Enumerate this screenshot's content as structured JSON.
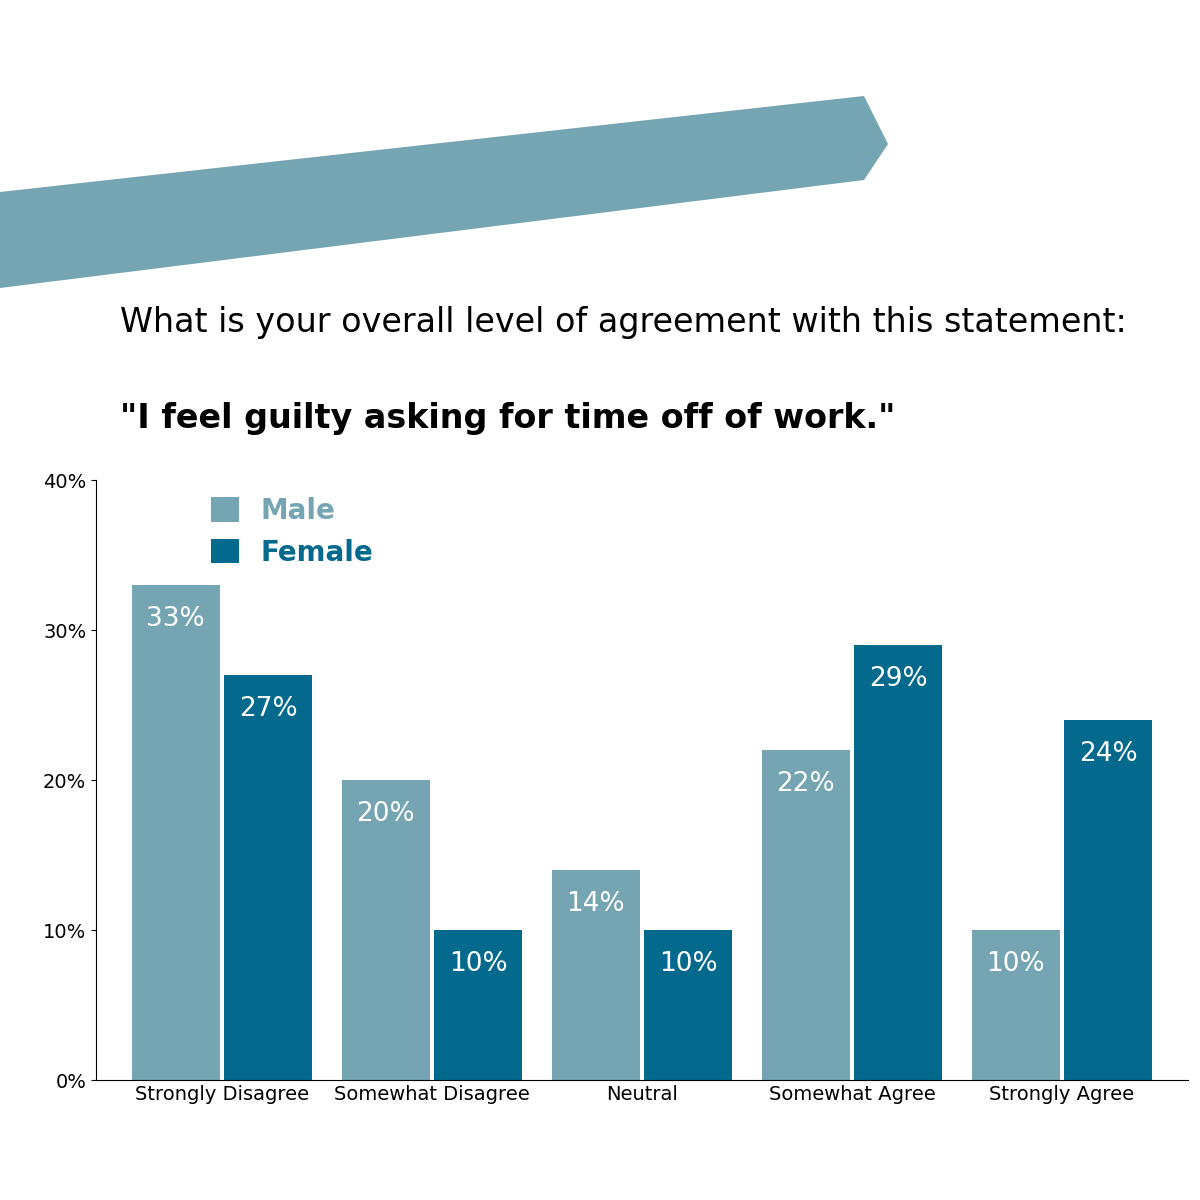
{
  "chart_data": {
    "type": "bar",
    "title": "What is your overall level of agreement with this statement:",
    "subtitle": "\"I feel guilty asking for time off of work.\"",
    "categories": [
      "Strongly Disagree",
      "Somewhat Disagree",
      "Neutral",
      "Somewhat Agree",
      "Strongly Agree"
    ],
    "series": [
      {
        "name": "Male",
        "color": "#75a5b3",
        "values": [
          33,
          20,
          14,
          22,
          10
        ],
        "value_labels": [
          "33%",
          "20%",
          "14%",
          "22%",
          "10%"
        ]
      },
      {
        "name": "Female",
        "color": "#036a8e",
        "values": [
          27,
          10,
          10,
          29,
          24
        ],
        "value_labels": [
          "27%",
          "10%",
          "10%",
          "29%",
          "24%"
        ]
      }
    ],
    "ylim": [
      0,
      40
    ],
    "yticks": [
      {
        "value": 0,
        "label": "0%"
      },
      {
        "value": 10,
        "label": "10%"
      },
      {
        "value": 20,
        "label": "20%"
      },
      {
        "value": 30,
        "label": "30%"
      },
      {
        "value": 40,
        "label": "40%"
      }
    ],
    "grid": false,
    "legend": "upper left",
    "data_labels": true
  }
}
